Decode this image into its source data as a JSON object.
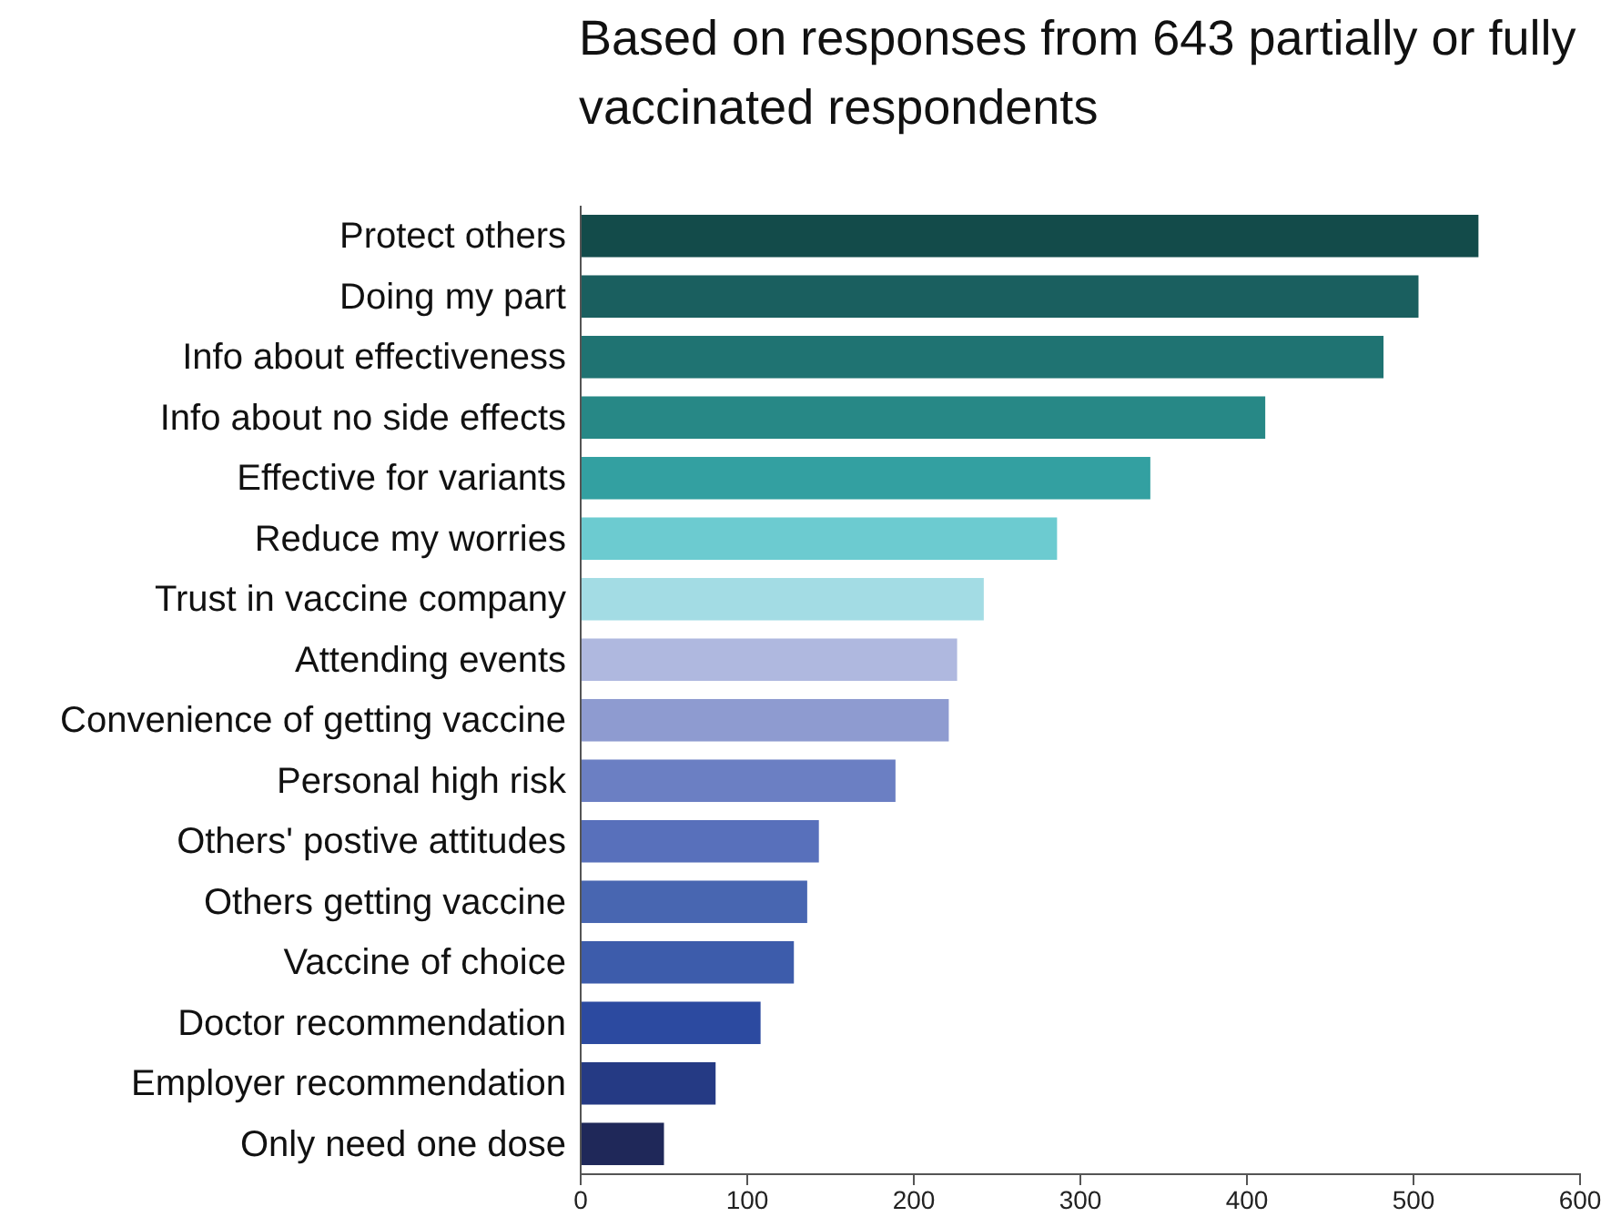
{
  "chart_data": {
    "type": "bar",
    "orientation": "horizontal",
    "title": "Based on responses from 643 partially or fully vaccinated respondents",
    "categories": [
      "Protect others",
      "Doing my part",
      "Info about effectiveness",
      "Info about no side effects",
      "Effective for variants",
      "Reduce my worries",
      "Trust in vaccine company",
      "Attending events",
      "Convenience of getting vaccine",
      "Personal high risk",
      "Others' postive attitudes",
      "Others getting vaccine",
      "Vaccine of choice",
      "Doctor recommendation",
      "Employer recommendation",
      "Only need one dose"
    ],
    "values": [
      539,
      503,
      482,
      411,
      342,
      286,
      242,
      226,
      221,
      189,
      143,
      136,
      128,
      108,
      81,
      50
    ],
    "colors": [
      "#134b4a",
      "#1a5f5f",
      "#1f7372",
      "#278886",
      "#33a0a1",
      "#6ccbd0",
      "#a3dce4",
      "#afb8df",
      "#8e9bd0",
      "#6b7fc3",
      "#5870bb",
      "#4866b1",
      "#3d5cab",
      "#2c4aa0",
      "#253a84",
      "#1f2859"
    ],
    "xlim": [
      0,
      600
    ],
    "xticks": [
      0,
      100,
      200,
      300,
      400,
      500,
      600
    ],
    "grid": false
  }
}
